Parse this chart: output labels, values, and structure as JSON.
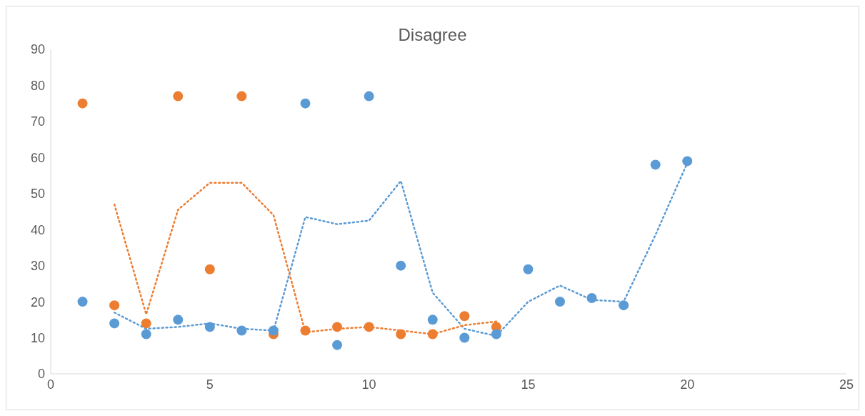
{
  "chart_data": {
    "type": "scatter",
    "title": "Disagree",
    "xlim": [
      0,
      25
    ],
    "xticks": [
      0,
      5,
      10,
      15,
      20,
      25
    ],
    "ylim": [
      0,
      90
    ],
    "yticks": [
      0,
      10,
      20,
      30,
      40,
      50,
      60,
      70,
      80,
      90
    ],
    "grid": false,
    "series": [
      {
        "marker": "circle",
        "color": "#ed7d31",
        "x": [
          1,
          2,
          3,
          4,
          5,
          6,
          7,
          8,
          9,
          10,
          11,
          12,
          13,
          14
        ],
        "values": [
          75,
          19,
          14,
          77,
          29,
          77,
          11,
          12,
          13,
          13,
          11,
          11,
          16,
          13
        ]
      },
      {
        "marker": "circle",
        "color": "#5b9bd5",
        "x": [
          1,
          2,
          3,
          4,
          5,
          6,
          7,
          8,
          9,
          10,
          11,
          12,
          13,
          14,
          15,
          16,
          17,
          18,
          19,
          20
        ],
        "values": [
          20,
          14,
          11,
          15,
          13,
          12,
          12,
          75,
          8,
          77,
          30,
          15,
          10,
          11,
          29,
          20,
          21,
          19,
          58,
          59
        ]
      },
      {
        "type": "line",
        "marker": "none",
        "color": "#5b9bd5",
        "line_style": "dotted",
        "x": [
          2,
          3,
          4,
          5,
          6,
          7,
          8,
          9,
          10,
          11,
          12,
          13,
          14,
          15,
          16,
          17,
          18,
          19,
          20
        ],
        "values": [
          17,
          12.5,
          13,
          14,
          12.5,
          12,
          43.5,
          41.5,
          42.5,
          53.5,
          22.5,
          12.5,
          10.5,
          20,
          24.5,
          20.5,
          20,
          38.5,
          58.5
        ]
      },
      {
        "type": "line",
        "marker": "none",
        "color": "#ed7d31",
        "line_style": "dotted",
        "x": [
          2,
          3,
          4,
          5,
          6,
          7,
          8,
          9,
          10,
          11,
          12,
          13,
          14
        ],
        "values": [
          47,
          16.5,
          45.5,
          53,
          53,
          44,
          11.5,
          12.5,
          13,
          12,
          11,
          13.5,
          14.5
        ]
      }
    ]
  }
}
